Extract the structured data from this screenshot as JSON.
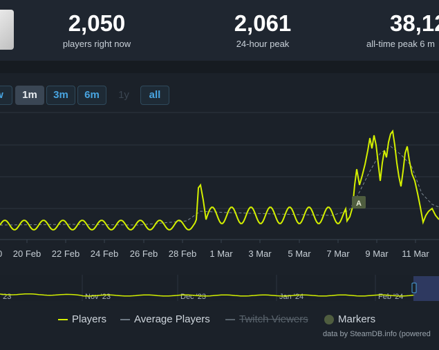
{
  "stats": [
    {
      "value": "2,050",
      "label": "players right now"
    },
    {
      "value": "2,061",
      "label": "24-hour peak"
    },
    {
      "value": "38,12",
      "label": "all-time peak 6 m"
    }
  ],
  "ranges": [
    {
      "label": "w",
      "state": "normal"
    },
    {
      "label": "1m",
      "state": "active"
    },
    {
      "label": "3m",
      "state": "normal"
    },
    {
      "label": "6m",
      "state": "normal"
    },
    {
      "label": "1y",
      "state": "disabled"
    },
    {
      "label": "all",
      "state": "normal"
    }
  ],
  "chart_data": {
    "type": "line",
    "x_ticks": [
      "20 Feb",
      "22 Feb",
      "24 Feb",
      "26 Feb",
      "28 Feb",
      "1 Mar",
      "3 Mar",
      "5 Mar",
      "7 Mar",
      "9 Mar",
      "11 Mar"
    ],
    "series": [
      {
        "name": "Players",
        "color": "#d4f000"
      },
      {
        "name": "Average Players",
        "color": "#7c8894"
      }
    ],
    "marker": {
      "label": "A"
    },
    "navigator_ticks": [
      "'23",
      "Nov '23",
      "Dec '23",
      "Jan '24",
      "Feb '24"
    ],
    "grid": true
  },
  "legend": [
    {
      "label": "Players",
      "color": "#d4f000",
      "style": "line"
    },
    {
      "label": "Average Players",
      "color": "#6f7a85",
      "style": "line"
    },
    {
      "label": "Twitch Viewers",
      "color": "#6f7a85",
      "style": "struck"
    },
    {
      "label": "Markers",
      "color": "#4f5d3f",
      "style": "dot"
    }
  ],
  "credit": "data by SteamDB.info (powered"
}
